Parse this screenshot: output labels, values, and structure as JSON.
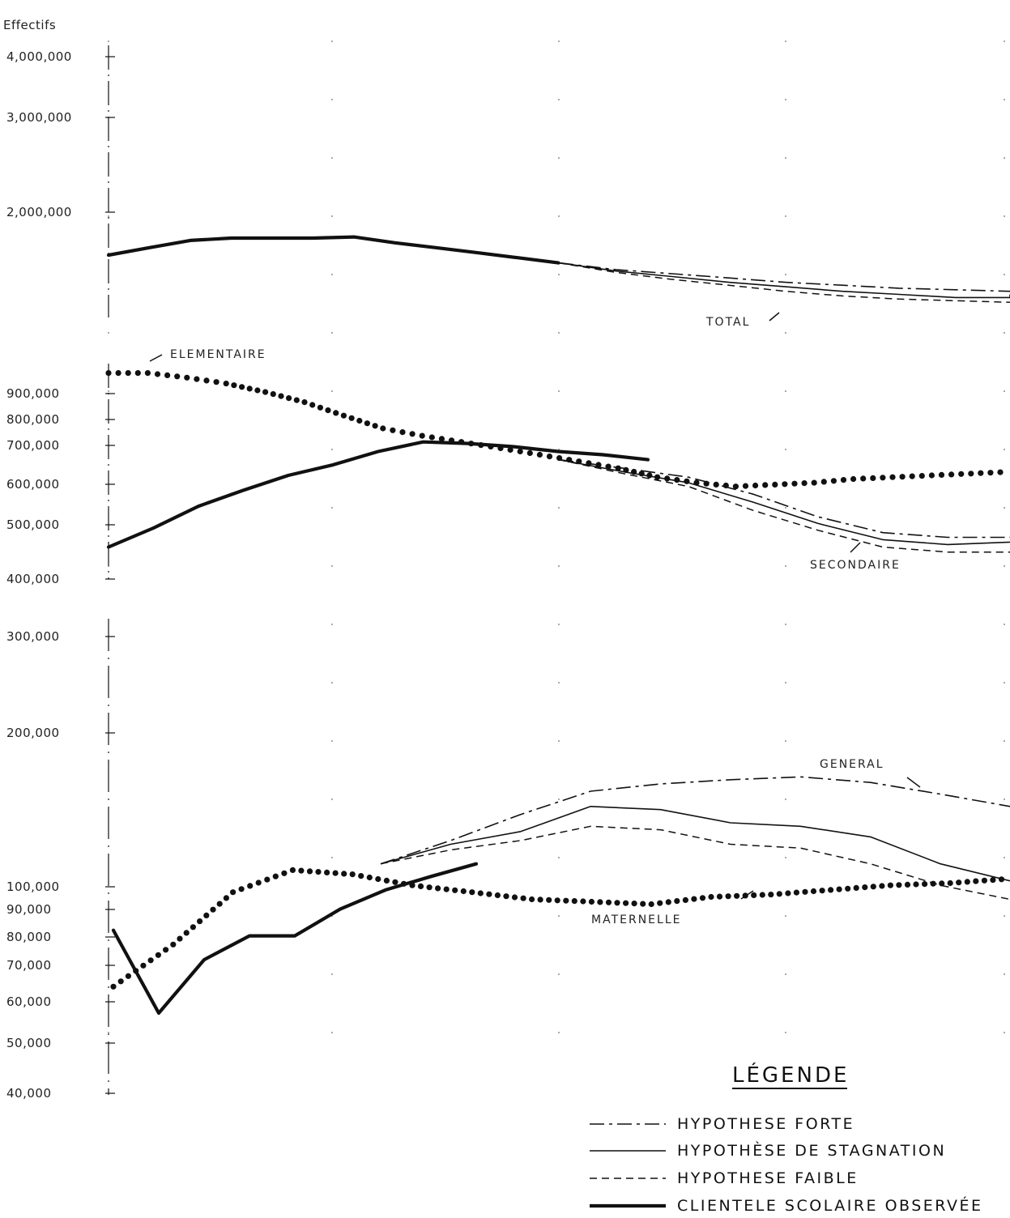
{
  "chart_data": {
    "type": "line",
    "ylabel": "Effectifs",
    "y_scale": "log",
    "grid": "partial dashed verticals",
    "panels": [
      {
        "label": "TOTAL",
        "y_ticks": [
          "4,000,000",
          "3,000,000",
          "2,000,000"
        ],
        "series": [
          {
            "style": "observed",
            "values": [
              1.52,
              1.58,
              1.64,
              1.66,
              1.66,
              1.66,
              1.67,
              1.62,
              1.58,
              1.54,
              1.5,
              1.46
            ]
          },
          {
            "style": "forte",
            "values": [
              1.46,
              1.41,
              1.38,
              1.35,
              1.32,
              1.3,
              1.28,
              1.27,
              1.26
            ]
          },
          {
            "style": "stagnation",
            "values": [
              1.46,
              1.4,
              1.36,
              1.32,
              1.29,
              1.26,
              1.24,
              1.22,
              1.22,
              1.24
            ]
          },
          {
            "style": "faible",
            "values": [
              1.46,
              1.39,
              1.34,
              1.3,
              1.26,
              1.23,
              1.21,
              1.2,
              1.19,
              1.19
            ]
          }
        ]
      },
      {
        "label": "SECONDAIRE",
        "label2": "ELEMENTAIRE",
        "y_ticks": [
          "900,000",
          "800,000",
          "700,000",
          "600,000",
          "500,000",
          "400,000"
        ],
        "series": [
          {
            "style": "elementaire",
            "values": [
              980,
              980,
              960,
              935,
              900,
              860,
              810,
              765,
              740,
              720,
              700,
              680,
              660,
              640,
              615,
              600,
              590,
              595,
              600,
              610,
              615,
              620,
              625,
              630
            ]
          },
          {
            "style": "observed",
            "values": [
              450,
              490,
              540,
              580,
              620,
              650,
              690,
              720,
              715,
              705,
              690,
              680,
              665
            ]
          },
          {
            "style": "forte",
            "values": [
              665,
              640,
              615,
              570,
              515,
              480,
              470,
              470
            ]
          },
          {
            "style": "stagnation",
            "values": [
              665,
              630,
              600,
              550,
              500,
              465,
              455,
              460
            ]
          },
          {
            "style": "faible",
            "values": [
              665,
              625,
              590,
              530,
              485,
              450,
              440,
              440
            ]
          }
        ]
      },
      {
        "label": "MATERNELLE",
        "label2": "GENERAL",
        "y_ticks": [
          "300,000",
          "200,000",
          "100,000",
          "90,000",
          "80,000",
          "70,000",
          "60,000",
          "50,000",
          "40,000"
        ],
        "series": [
          {
            "style": "maternelle",
            "values": [
              62,
              75,
              95,
              105,
              103,
              98,
              95,
              92,
              91,
              90,
              93,
              94,
              96,
              98,
              99,
              101
            ]
          },
          {
            "style": "observed",
            "values": [
              80,
              55,
              70,
              78,
              78,
              88,
              96,
              102,
              108
            ]
          },
          {
            "style": "forte",
            "values": [
              108,
              120,
              135,
              150,
              155,
              158,
              160,
              156,
              148,
              140
            ]
          },
          {
            "style": "stagnation",
            "values": [
              108,
              118,
              125,
              140,
              138,
              130,
              128,
              122,
              108,
              100
            ]
          },
          {
            "style": "faible",
            "values": [
              108,
              115,
              120,
              128,
              126,
              118,
              116,
              108,
              98,
              92
            ]
          }
        ]
      }
    ],
    "legend": {
      "title": "LÉGENDE",
      "placement": "bottom-right",
      "entries": [
        {
          "style": "forte",
          "label": "HYPOTHESE FORTE"
        },
        {
          "style": "stagnation",
          "label": "HYPOTHÈSE DE STAGNATION"
        },
        {
          "style": "faible",
          "label": "HYPOTHESE FAIBLE"
        },
        {
          "style": "observed",
          "label": "CLIENTELE SCOLAIRE OBSERVÉE"
        }
      ]
    }
  },
  "colors": {
    "ink": "#111111",
    "paper": "#ffffff"
  }
}
